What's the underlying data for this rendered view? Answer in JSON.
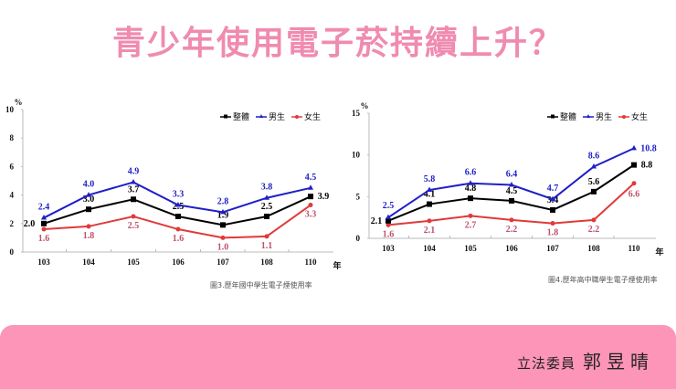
{
  "slide": {
    "title": "青少年使用電子菸持續上升？",
    "signature_prefix": "立法委員",
    "signature_name": "郭昱晴",
    "colors": {
      "title": "#f08bb0",
      "footer": "#fd95b8",
      "overall": "#000000",
      "male": "#1f1fc8",
      "female": "#e03a3a",
      "female_label": "#c0506a"
    }
  },
  "chart_data": [
    {
      "type": "line",
      "title": "圖3.歷年國中學生電子煙使用率",
      "xlabel": "年",
      "ylabel": "%",
      "ylim": [
        0,
        10
      ],
      "yticks": [
        "0",
        "2",
        "4",
        "6",
        "8",
        "10"
      ],
      "categories": [
        "103",
        "104",
        "105",
        "106",
        "107",
        "108",
        "110"
      ],
      "legend_position": "top-right",
      "grid": false,
      "series": [
        {
          "name": "整體",
          "values": [
            2.0,
            3.0,
            3.7,
            2.5,
            1.9,
            2.5,
            3.9
          ]
        },
        {
          "name": "男生",
          "values": [
            2.4,
            4.0,
            4.9,
            3.3,
            2.8,
            3.8,
            4.5
          ]
        },
        {
          "name": "女生",
          "values": [
            1.6,
            1.8,
            2.5,
            1.6,
            1.0,
            1.1,
            3.3
          ]
        }
      ]
    },
    {
      "type": "line",
      "title": "圖4.歷年高中職學生電子煙使用率",
      "xlabel": "年",
      "ylabel": "%",
      "ylim": [
        0,
        15
      ],
      "yticks": [
        "0",
        "5",
        "10",
        "15"
      ],
      "categories": [
        "103",
        "104",
        "105",
        "106",
        "107",
        "108",
        "110"
      ],
      "legend_position": "top-right",
      "grid": false,
      "series": [
        {
          "name": "整體",
          "values": [
            2.1,
            4.1,
            4.8,
            4.5,
            3.4,
            5.6,
            8.8
          ]
        },
        {
          "name": "男生",
          "values": [
            2.5,
            5.8,
            6.6,
            6.4,
            4.7,
            8.6,
            10.8
          ]
        },
        {
          "name": "女生",
          "values": [
            1.6,
            2.1,
            2.7,
            2.2,
            1.8,
            2.2,
            6.6
          ]
        }
      ]
    }
  ]
}
